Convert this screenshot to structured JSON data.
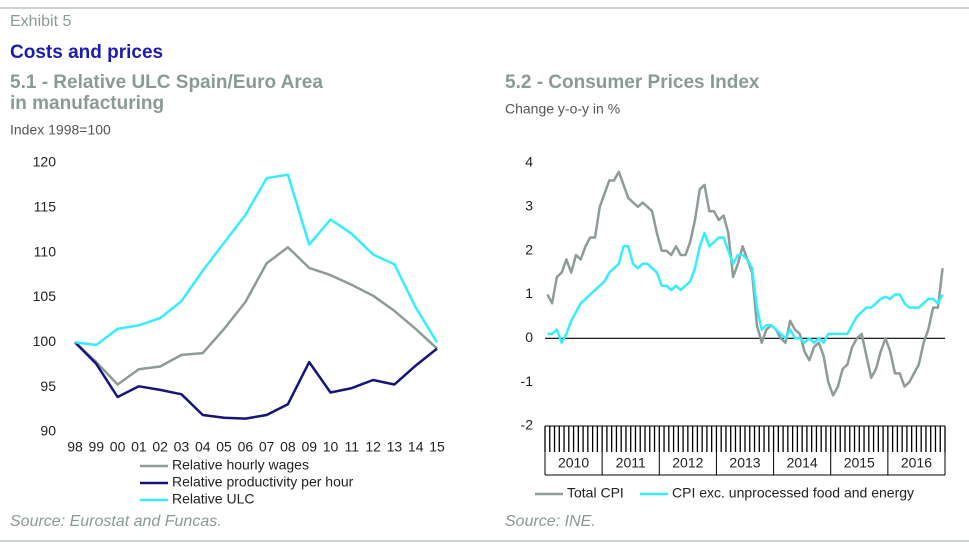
{
  "exhibit": "Exhibit 5",
  "heading": "Costs and prices",
  "chart_data": [
    {
      "type": "line",
      "title": [
        "5.1 -  Relative ULC Spain/Euro Area",
        "in manufacturing"
      ],
      "subtitle": "Index 1998=100",
      "source": "Source: Eurostat and Funcas.",
      "categories": [
        "98",
        "99",
        "00",
        "01",
        "02",
        "03",
        "04",
        "05",
        "06",
        "07",
        "08",
        "09",
        "10",
        "11",
        "12",
        "13",
        "14",
        "15"
      ],
      "series": [
        {
          "name": "Relative hourly wages",
          "color": "#8e9b96",
          "values": [
            100,
            97.8,
            95.3,
            97.0,
            97.3,
            98.6,
            98.8,
            101.5,
            104.5,
            108.8,
            110.6,
            108.3,
            107.5,
            106.4,
            105.2,
            103.5,
            101.5,
            99.3
          ]
        },
        {
          "name": "Relative productivity per hour",
          "color": "#14147a",
          "values": [
            100,
            97.6,
            93.9,
            95.1,
            94.7,
            94.2,
            91.9,
            91.6,
            91.5,
            91.9,
            93.1,
            97.8,
            94.4,
            94.9,
            95.8,
            95.3,
            97.4,
            99.3
          ]
        },
        {
          "name": "Relative ULC",
          "color": "#33eeff",
          "values": [
            100,
            99.7,
            101.5,
            101.9,
            102.7,
            104.6,
            108.0,
            111.1,
            114.2,
            118.3,
            118.7,
            110.9,
            113.7,
            112.1,
            109.8,
            108.7,
            103.9,
            100.0
          ]
        }
      ],
      "ylim": [
        90,
        120
      ],
      "yticks": [
        90,
        95,
        100,
        105,
        110,
        115,
        120
      ]
    },
    {
      "type": "line",
      "title": [
        "5.2 -  Consumer Prices Index"
      ],
      "subtitle": "Change y-o-y in %",
      "source": "Source: INE.",
      "categories": [
        "2010",
        null,
        null,
        null,
        null,
        null,
        null,
        null,
        null,
        null,
        null,
        null,
        "2011",
        null,
        null,
        null,
        null,
        null,
        null,
        null,
        null,
        null,
        null,
        null,
        "2012",
        null,
        null,
        null,
        null,
        null,
        null,
        null,
        null,
        null,
        null,
        null,
        "2013",
        null,
        null,
        null,
        null,
        null,
        null,
        null,
        null,
        null,
        null,
        null,
        "2014",
        null,
        null,
        null,
        null,
        null,
        null,
        null,
        null,
        null,
        null,
        null,
        "2015",
        null,
        null,
        null,
        null,
        null,
        null,
        null,
        null,
        null,
        null,
        null,
        "2016",
        null,
        null,
        null,
        null,
        null,
        null,
        null,
        null,
        null,
        null,
        null
      ],
      "series": [
        {
          "name": "Total CPI",
          "color": "#8e9b96",
          "values": [
            1.0,
            0.8,
            1.4,
            1.5,
            1.8,
            1.5,
            1.9,
            1.8,
            2.1,
            2.3,
            2.3,
            3.0,
            3.3,
            3.6,
            3.6,
            3.8,
            3.5,
            3.2,
            3.1,
            3.0,
            3.1,
            3.0,
            2.9,
            2.4,
            2.0,
            2.0,
            1.9,
            2.1,
            1.9,
            1.9,
            2.2,
            2.7,
            3.4,
            3.5,
            2.9,
            2.9,
            2.7,
            2.8,
            2.4,
            1.4,
            1.7,
            2.1,
            1.8,
            1.5,
            0.3,
            -0.1,
            0.2,
            0.3,
            0.2,
            0.0,
            -0.1,
            0.4,
            0.2,
            0.1,
            -0.3,
            -0.5,
            -0.2,
            -0.1,
            -0.4,
            -1.0,
            -1.3,
            -1.1,
            -0.7,
            -0.6,
            -0.2,
            0.0,
            0.1,
            -0.4,
            -0.9,
            -0.7,
            -0.3,
            0.0,
            -0.3,
            -0.8,
            -0.8,
            -1.1,
            -1.0,
            -0.8,
            -0.6,
            -0.1,
            0.2,
            0.7,
            0.7,
            1.6
          ]
        },
        {
          "name": "CPI exc. unprocessed food and energy",
          "color": "#33eeff",
          "values": [
            0.1,
            0.1,
            0.2,
            -0.1,
            0.1,
            0.4,
            0.6,
            0.8,
            0.9,
            1.0,
            1.1,
            1.2,
            1.3,
            1.5,
            1.6,
            1.7,
            2.1,
            2.1,
            1.7,
            1.6,
            1.7,
            1.7,
            1.6,
            1.5,
            1.2,
            1.2,
            1.1,
            1.2,
            1.1,
            1.2,
            1.3,
            1.6,
            2.1,
            2.4,
            2.1,
            2.2,
            2.3,
            2.3,
            2.0,
            1.7,
            1.9,
            1.9,
            1.8,
            1.6,
            0.7,
            0.2,
            0.3,
            0.3,
            0.2,
            0.1,
            0.0,
            0.2,
            0.0,
            0.0,
            -0.1,
            0.0,
            -0.1,
            0.0,
            -0.1,
            0.1,
            0.1,
            0.1,
            0.1,
            0.1,
            0.3,
            0.5,
            0.6,
            0.7,
            0.7,
            0.8,
            0.9,
            0.95,
            0.9,
            1.0,
            1.0,
            0.8,
            0.7,
            0.7,
            0.7,
            0.8,
            0.9,
            0.9,
            0.8,
            1.0
          ]
        }
      ],
      "ylim": [
        -2,
        4
      ],
      "yticks": [
        -2,
        -1,
        0,
        1,
        2,
        3,
        4
      ]
    }
  ]
}
